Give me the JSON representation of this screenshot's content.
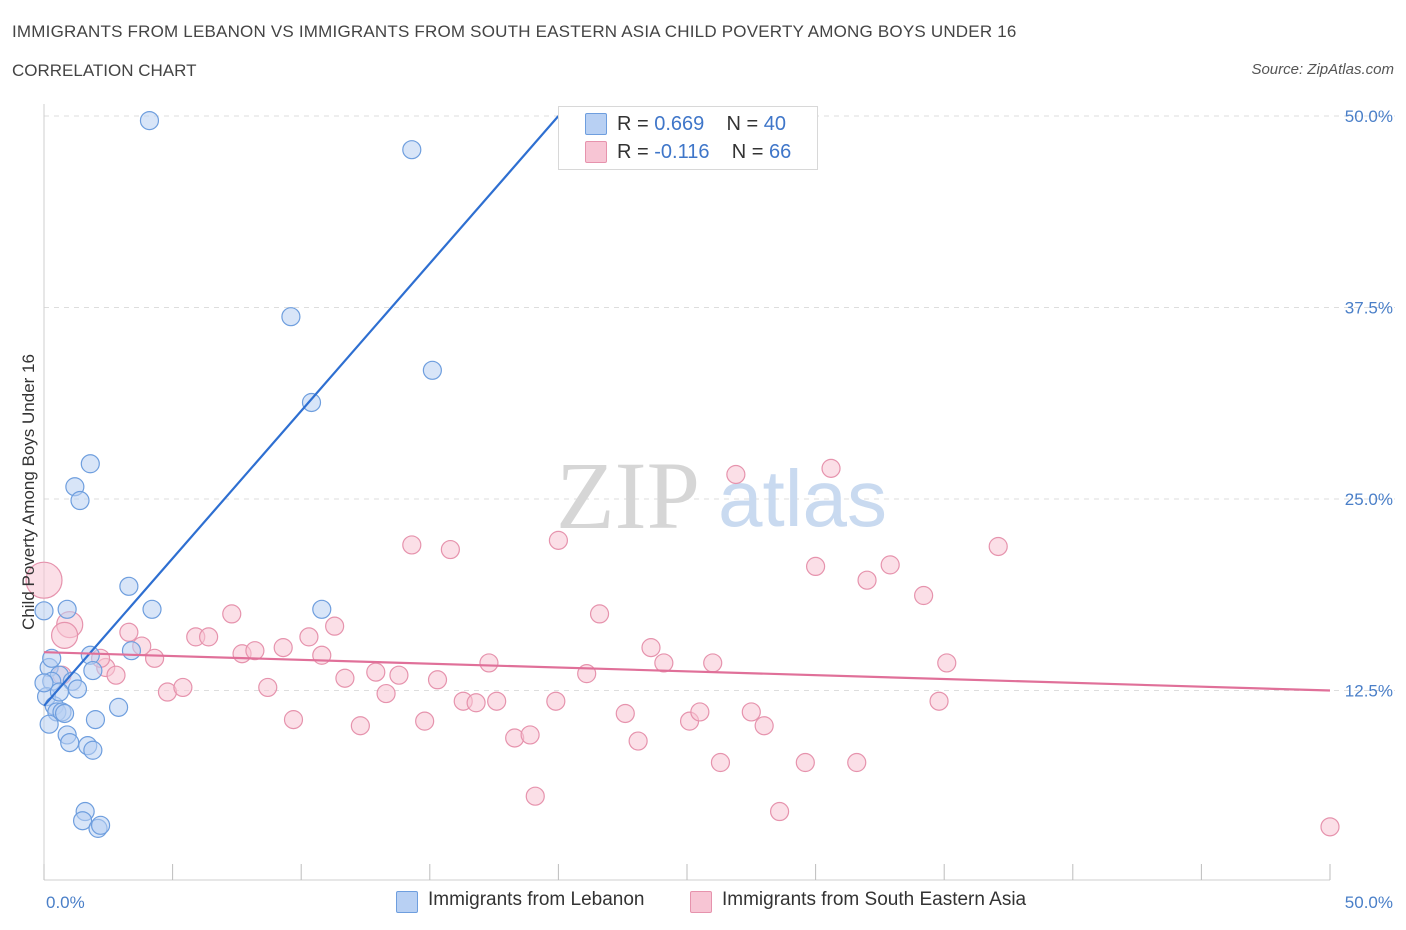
{
  "header": {
    "title": "IMMIGRANTS FROM LEBANON VS IMMIGRANTS FROM SOUTH EASTERN ASIA CHILD POVERTY AMONG BOYS UNDER 16",
    "subtitle": "CORRELATION CHART",
    "source": "Source: ZipAtlas.com"
  },
  "watermark": {
    "zip": "ZIP",
    "atlas": "atlas"
  },
  "colors": {
    "lebanon_fill": "#b8d0f3",
    "lebanon_stroke": "#6e9ede",
    "lebanon_line": "#2e6fd1",
    "sea_fill": "#f7c5d4",
    "sea_stroke": "#e693ad",
    "sea_line": "#e07099",
    "grid": "#dddddd",
    "axis_label": "#4a7fc8"
  },
  "legend": {
    "rows": [
      {
        "r_label": "R = ",
        "r_value": "0.669",
        "n_label": "N = ",
        "n_value": "40"
      },
      {
        "r_label": "R = ",
        "r_value": "-0.116",
        "n_label": "N = ",
        "n_value": "66"
      }
    ]
  },
  "bottom_legend": {
    "lebanon": "Immigrants from Lebanon",
    "sea": "Immigrants from South Eastern Asia"
  },
  "chart_data": {
    "type": "scatter",
    "title": "IMMIGRANTS FROM LEBANON VS IMMIGRANTS FROM SOUTH EASTERN ASIA CHILD POVERTY AMONG BOYS UNDER 16",
    "xlabel": "",
    "ylabel": "Child Poverty Among Boys Under 16",
    "xlim": [
      0,
      50
    ],
    "ylim": [
      0,
      50
    ],
    "x_tick_labels": [
      "0.0%",
      "50.0%"
    ],
    "y_ticks": [
      12.5,
      25.0,
      37.5,
      50.0
    ],
    "y_tick_labels": [
      "12.5%",
      "25.0%",
      "37.5%",
      "50.0%"
    ],
    "grid": true,
    "series": [
      {
        "name": "Immigrants from Lebanon",
        "R": 0.669,
        "N": 40,
        "trend": {
          "x": [
            0.0,
            20.0
          ],
          "y": [
            11.5,
            50.0
          ]
        },
        "points": [
          [
            4.1,
            49.7
          ],
          [
            14.3,
            47.8
          ],
          [
            9.6,
            36.9
          ],
          [
            15.1,
            33.4
          ],
          [
            10.4,
            31.3
          ],
          [
            1.8,
            27.3
          ],
          [
            1.2,
            25.8
          ],
          [
            1.4,
            24.9
          ],
          [
            3.3,
            19.3
          ],
          [
            4.2,
            17.8
          ],
          [
            10.8,
            17.8
          ],
          [
            0.0,
            17.7
          ],
          [
            0.9,
            17.8
          ],
          [
            0.2,
            14.0
          ],
          [
            0.6,
            13.5
          ],
          [
            1.1,
            13.1
          ],
          [
            0.3,
            13.1
          ],
          [
            1.3,
            12.6
          ],
          [
            0.1,
            12.1
          ],
          [
            0.4,
            11.5
          ],
          [
            0.5,
            11.1
          ],
          [
            0.7,
            11.1
          ],
          [
            2.0,
            10.6
          ],
          [
            0.9,
            9.6
          ],
          [
            1.7,
            8.9
          ],
          [
            1.9,
            8.6
          ],
          [
            0.6,
            12.4
          ],
          [
            1.8,
            14.8
          ],
          [
            3.4,
            15.1
          ],
          [
            2.9,
            11.4
          ],
          [
            1.0,
            9.1
          ],
          [
            1.6,
            4.6
          ],
          [
            1.5,
            4.0
          ],
          [
            2.1,
            3.5
          ],
          [
            2.2,
            3.7
          ],
          [
            0.2,
            10.3
          ],
          [
            0.8,
            11.0
          ],
          [
            1.9,
            13.8
          ],
          [
            0.3,
            14.6
          ],
          [
            0.0,
            13.0
          ]
        ]
      },
      {
        "name": "Immigrants from South Eastern Asia",
        "R": -0.116,
        "N": 66,
        "trend": {
          "x": [
            0.0,
            50.0
          ],
          "y": [
            15.0,
            12.5
          ]
        },
        "points": [
          [
            0.0,
            19.7
          ],
          [
            1.0,
            16.8
          ],
          [
            0.8,
            16.1
          ],
          [
            3.3,
            16.3
          ],
          [
            3.8,
            15.4
          ],
          [
            4.3,
            14.6
          ],
          [
            2.4,
            14.0
          ],
          [
            2.8,
            13.5
          ],
          [
            4.8,
            12.4
          ],
          [
            5.4,
            12.7
          ],
          [
            5.9,
            16.0
          ],
          [
            6.4,
            16.0
          ],
          [
            7.3,
            17.5
          ],
          [
            7.7,
            14.9
          ],
          [
            8.2,
            15.1
          ],
          [
            8.7,
            12.7
          ],
          [
            9.3,
            15.3
          ],
          [
            9.7,
            10.6
          ],
          [
            10.3,
            16.0
          ],
          [
            10.8,
            14.8
          ],
          [
            11.3,
            16.7
          ],
          [
            11.7,
            13.3
          ],
          [
            12.3,
            10.2
          ],
          [
            12.9,
            13.7
          ],
          [
            13.3,
            12.3
          ],
          [
            13.8,
            13.5
          ],
          [
            14.3,
            22.0
          ],
          [
            14.8,
            10.5
          ],
          [
            15.3,
            13.2
          ],
          [
            15.8,
            21.7
          ],
          [
            16.3,
            11.8
          ],
          [
            16.8,
            11.7
          ],
          [
            17.3,
            14.3
          ],
          [
            17.6,
            11.8
          ],
          [
            18.3,
            9.4
          ],
          [
            18.9,
            9.6
          ],
          [
            19.1,
            5.6
          ],
          [
            19.9,
            11.8
          ],
          [
            20.0,
            22.3
          ],
          [
            21.1,
            13.6
          ],
          [
            21.6,
            17.5
          ],
          [
            22.6,
            11.0
          ],
          [
            23.1,
            9.2
          ],
          [
            23.6,
            15.3
          ],
          [
            24.1,
            14.3
          ],
          [
            25.1,
            10.5
          ],
          [
            25.5,
            11.1
          ],
          [
            26.0,
            14.3
          ],
          [
            26.3,
            7.8
          ],
          [
            26.9,
            26.6
          ],
          [
            27.5,
            11.1
          ],
          [
            28.0,
            10.2
          ],
          [
            28.6,
            4.6
          ],
          [
            29.6,
            7.8
          ],
          [
            30.0,
            20.6
          ],
          [
            30.6,
            27.0
          ],
          [
            32.0,
            19.7
          ],
          [
            31.6,
            7.8
          ],
          [
            32.9,
            20.7
          ],
          [
            34.2,
            18.7
          ],
          [
            34.8,
            11.8
          ],
          [
            35.1,
            14.3
          ],
          [
            37.1,
            21.9
          ],
          [
            50.0,
            3.6
          ],
          [
            0.7,
            13.5
          ],
          [
            2.2,
            14.6
          ]
        ]
      }
    ]
  }
}
